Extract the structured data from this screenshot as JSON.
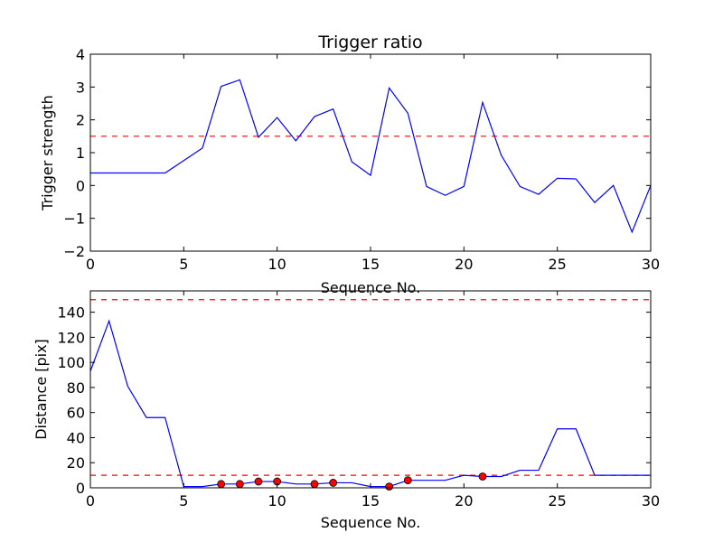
{
  "chart_data": [
    {
      "type": "line",
      "title": "Trigger ratio",
      "xlabel": "Sequence No.",
      "ylabel": "Trigger strength",
      "xlim": [
        0,
        30
      ],
      "ylim": [
        -2,
        4
      ],
      "xticks": [
        "0",
        "5",
        "10",
        "15",
        "20",
        "25",
        "30"
      ],
      "yticks": [
        "−2",
        "−1",
        "0",
        "1",
        "2",
        "3",
        "4"
      ],
      "grid": false,
      "series": [
        {
          "color": "#0000ff",
          "style": "solid",
          "x": [
            0,
            1,
            2,
            3,
            4,
            5,
            6,
            7,
            8,
            9,
            10,
            11,
            12,
            13,
            14,
            15,
            16,
            17,
            18,
            19,
            20,
            21,
            22,
            23,
            24,
            25,
            26,
            27,
            28,
            29,
            30
          ],
          "y": [
            0.38,
            0.38,
            0.38,
            0.38,
            0.38,
            0.76,
            1.14,
            3.02,
            3.22,
            1.47,
            2.07,
            1.36,
            2.1,
            2.33,
            0.72,
            0.31,
            2.97,
            2.2,
            -0.03,
            -0.3,
            -0.03,
            2.53,
            0.92,
            -0.03,
            -0.27,
            0.22,
            0.2,
            -0.52,
            0.0,
            -1.42,
            0.0
          ]
        }
      ],
      "reference_lines": [
        {
          "y": 1.5,
          "color": "#ff0000",
          "style": "dashed"
        }
      ]
    },
    {
      "type": "line",
      "title": "",
      "xlabel": "Sequence No.",
      "ylabel": "Distance [pix]",
      "xlim": [
        0,
        30
      ],
      "ylim": [
        0,
        157
      ],
      "xticks": [
        "0",
        "5",
        "10",
        "15",
        "20",
        "25",
        "30"
      ],
      "yticks": [
        "0",
        "20",
        "40",
        "60",
        "80",
        "100",
        "120",
        "140"
      ],
      "grid": false,
      "series": [
        {
          "color": "#0000ff",
          "style": "solid",
          "x": [
            0,
            1,
            2,
            3,
            4,
            5,
            6,
            7,
            8,
            9,
            10,
            11,
            12,
            13,
            14,
            15,
            16,
            17,
            18,
            19,
            20,
            21,
            22,
            23,
            24,
            25,
            26,
            27,
            28,
            29,
            30
          ],
          "y": [
            93,
            133,
            81,
            56,
            56,
            1,
            1,
            3,
            3,
            5,
            5,
            3,
            3,
            4,
            4,
            1,
            1,
            6,
            6,
            6,
            10,
            9,
            9,
            14,
            14,
            47,
            47,
            10,
            10,
            10,
            10
          ]
        }
      ],
      "markers": {
        "color": "#ff0000",
        "x": [
          7,
          8,
          9,
          10,
          12,
          13,
          16,
          17,
          21
        ],
        "y": [
          3,
          3,
          5,
          5,
          3,
          4,
          1,
          6,
          9
        ]
      },
      "reference_lines": [
        {
          "y": 150,
          "color": "#ff0000",
          "style": "dashed"
        },
        {
          "y": 10,
          "color": "#ff0000",
          "style": "dashed"
        }
      ]
    }
  ]
}
